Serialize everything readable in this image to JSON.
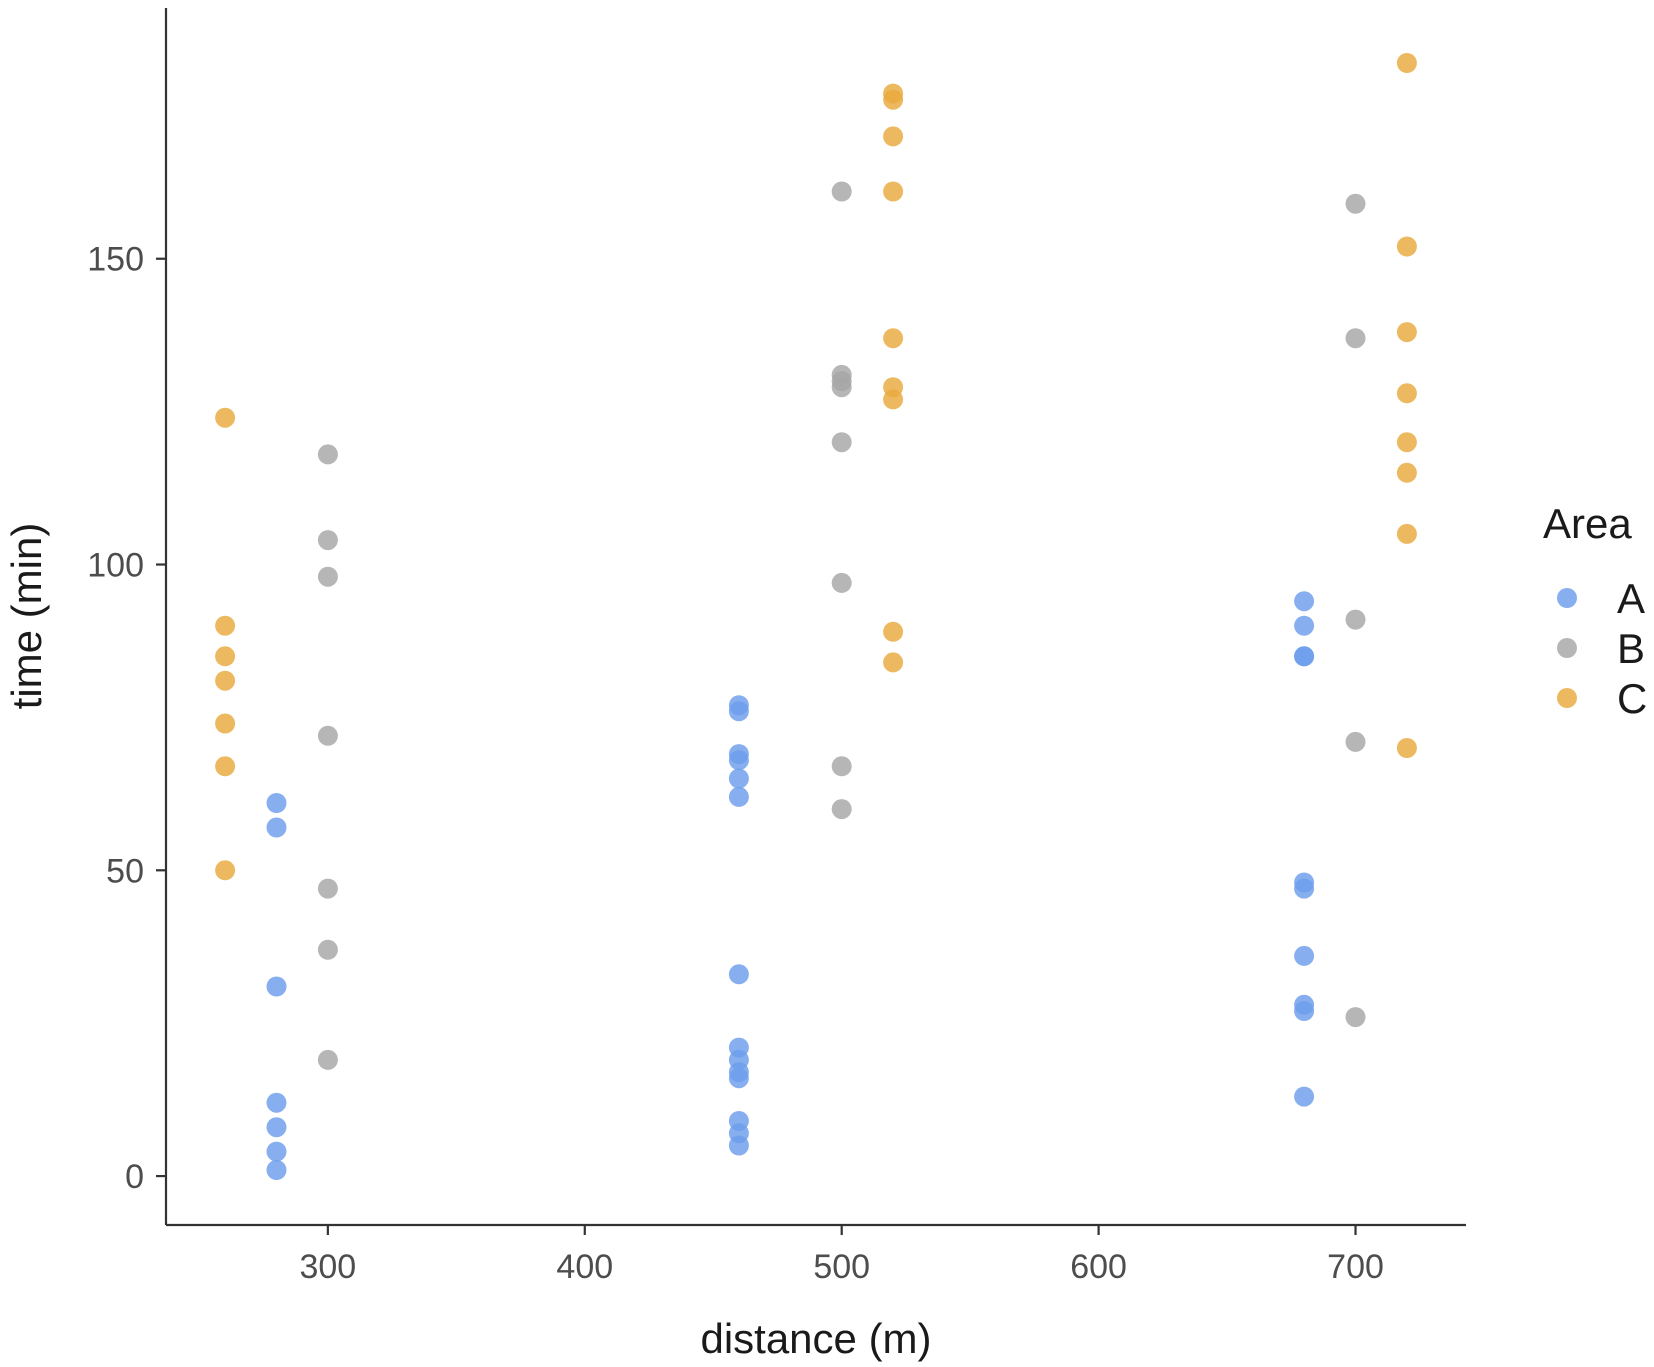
{
  "chart_data": {
    "type": "scatter",
    "title": "",
    "xlabel": "distance (m)",
    "ylabel": "time (min)",
    "xlim": [
      237,
      743
    ],
    "ylim": [
      -8,
      191
    ],
    "xticks": [
      300,
      400,
      500,
      600,
      700
    ],
    "yticks": [
      0,
      50,
      100,
      150
    ],
    "grid": false,
    "legend": {
      "title": "Area",
      "position": "right"
    },
    "series": [
      {
        "name": "A",
        "color": "#6d9eeb",
        "points": [
          [
            280,
            61
          ],
          [
            280,
            57
          ],
          [
            280,
            31
          ],
          [
            280,
            12
          ],
          [
            280,
            8
          ],
          [
            280,
            4
          ],
          [
            280,
            1
          ],
          [
            460,
            77
          ],
          [
            460,
            76
          ],
          [
            460,
            69
          ],
          [
            460,
            68
          ],
          [
            460,
            65
          ],
          [
            460,
            62
          ],
          [
            460,
            33
          ],
          [
            460,
            21
          ],
          [
            460,
            19
          ],
          [
            460,
            17
          ],
          [
            460,
            16
          ],
          [
            460,
            9
          ],
          [
            460,
            7
          ],
          [
            460,
            5
          ],
          [
            680,
            94
          ],
          [
            680,
            90
          ],
          [
            680,
            85
          ],
          [
            680,
            85
          ],
          [
            680,
            48
          ],
          [
            680,
            47
          ],
          [
            680,
            36
          ],
          [
            680,
            28
          ],
          [
            680,
            27
          ],
          [
            680,
            13
          ]
        ]
      },
      {
        "name": "B",
        "color": "#a6a6a6",
        "points": [
          [
            300,
            118
          ],
          [
            300,
            104
          ],
          [
            300,
            98
          ],
          [
            300,
            72
          ],
          [
            300,
            47
          ],
          [
            300,
            37
          ],
          [
            300,
            19
          ],
          [
            500,
            161
          ],
          [
            500,
            131
          ],
          [
            500,
            130
          ],
          [
            500,
            129
          ],
          [
            500,
            120
          ],
          [
            500,
            97
          ],
          [
            500,
            67
          ],
          [
            500,
            60
          ],
          [
            700,
            159
          ],
          [
            700,
            137
          ],
          [
            700,
            91
          ],
          [
            700,
            71
          ],
          [
            700,
            26
          ]
        ]
      },
      {
        "name": "C",
        "color": "#e9a93d",
        "points": [
          [
            260,
            124
          ],
          [
            260,
            90
          ],
          [
            260,
            85
          ],
          [
            260,
            81
          ],
          [
            260,
            74
          ],
          [
            260,
            67
          ],
          [
            260,
            50
          ],
          [
            520,
            177
          ],
          [
            520,
            176
          ],
          [
            520,
            170
          ],
          [
            520,
            161
          ],
          [
            520,
            137
          ],
          [
            520,
            129
          ],
          [
            520,
            127
          ],
          [
            520,
            89
          ],
          [
            520,
            84
          ],
          [
            720,
            182
          ],
          [
            720,
            152
          ],
          [
            720,
            138
          ],
          [
            720,
            128
          ],
          [
            720,
            120
          ],
          [
            720,
            115
          ],
          [
            720,
            105
          ],
          [
            720,
            70
          ]
        ]
      }
    ]
  }
}
